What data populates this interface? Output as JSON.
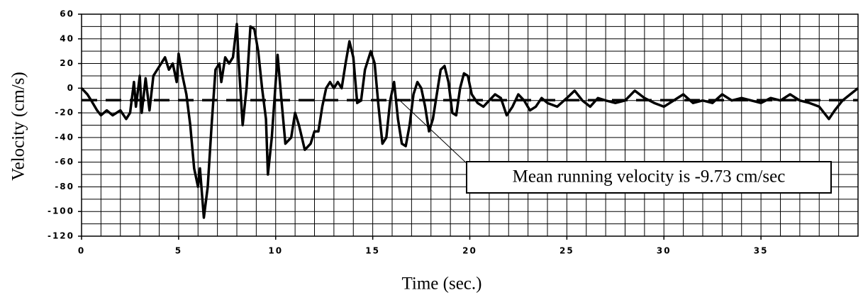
{
  "chart_data": {
    "type": "line",
    "x_label": "Time (sec.)",
    "y_label": "Velocity (cm/s)",
    "annotation": "Mean running velocity is -9.73 cm/sec",
    "mean": -9.73,
    "color": "#000000",
    "grid": true,
    "xlim": [
      0,
      40
    ],
    "xticks": [
      0,
      5,
      10,
      15,
      20,
      25,
      30,
      35
    ],
    "ylim": [
      -120,
      60
    ],
    "yticks": [
      60,
      40,
      20,
      0,
      -20,
      -40,
      -60,
      -80,
      -100,
      -120
    ],
    "x": [
      0,
      0.3,
      0.5,
      0.8,
      1.0,
      1.3,
      1.6,
      2.0,
      2.3,
      2.5,
      2.7,
      2.8,
      3.0,
      3.1,
      3.3,
      3.5,
      3.7,
      3.9,
      4.1,
      4.3,
      4.5,
      4.7,
      4.9,
      5.0,
      5.2,
      5.4,
      5.6,
      5.8,
      6.0,
      6.1,
      6.3,
      6.5,
      6.7,
      6.9,
      7.1,
      7.2,
      7.4,
      7.6,
      7.8,
      8.0,
      8.1,
      8.3,
      8.5,
      8.7,
      8.9,
      9.1,
      9.3,
      9.5,
      9.6,
      9.8,
      10.1,
      10.3,
      10.5,
      10.8,
      11.0,
      11.2,
      11.5,
      11.8,
      12.0,
      12.2,
      12.4,
      12.6,
      12.8,
      13.0,
      13.2,
      13.4,
      13.6,
      13.8,
      14.0,
      14.2,
      14.4,
      14.6,
      14.9,
      15.1,
      15.3,
      15.5,
      15.7,
      15.9,
      16.1,
      16.3,
      16.5,
      16.7,
      16.9,
      17.1,
      17.3,
      17.5,
      17.7,
      17.9,
      18.1,
      18.3,
      18.5,
      18.7,
      18.9,
      19.1,
      19.3,
      19.5,
      19.7,
      19.9,
      20.1,
      20.4,
      20.7,
      21.0,
      21.3,
      21.6,
      21.9,
      22.2,
      22.5,
      22.8,
      23.1,
      23.4,
      23.7,
      24.0,
      24.5,
      25.0,
      25.4,
      25.8,
      26.2,
      26.6,
      27.0,
      27.5,
      28.0,
      28.5,
      29.0,
      29.5,
      30.0,
      30.5,
      31.0,
      31.5,
      32.0,
      32.5,
      33.0,
      33.5,
      34.0,
      34.5,
      35.0,
      35.5,
      36.0,
      36.5,
      37.0,
      37.5,
      38.0,
      38.5,
      38.8,
      39.2,
      39.6,
      40
    ],
    "values": [
      0,
      -5,
      -10,
      -18,
      -22,
      -18,
      -22,
      -18,
      -25,
      -20,
      5,
      -15,
      10,
      -20,
      8,
      -18,
      10,
      15,
      20,
      25,
      15,
      20,
      5,
      28,
      10,
      -5,
      -30,
      -65,
      -80,
      -65,
      -105,
      -80,
      -30,
      15,
      20,
      5,
      25,
      20,
      25,
      52,
      20,
      -30,
      0,
      50,
      48,
      30,
      0,
      -25,
      -70,
      -40,
      27,
      -10,
      -45,
      -40,
      -20,
      -30,
      -50,
      -45,
      -35,
      -35,
      -15,
      0,
      5,
      0,
      5,
      0,
      20,
      38,
      25,
      -12,
      -10,
      15,
      30,
      20,
      -15,
      -45,
      -40,
      -10,
      5,
      -25,
      -45,
      -47,
      -30,
      -5,
      5,
      0,
      -15,
      -35,
      -25,
      -5,
      15,
      18,
      5,
      -20,
      -22,
      0,
      12,
      10,
      -5,
      -12,
      -15,
      -10,
      -5,
      -8,
      -22,
      -15,
      -5,
      -10,
      -18,
      -15,
      -8,
      -12,
      -15,
      -8,
      -2,
      -10,
      -15,
      -8,
      -10,
      -12,
      -10,
      -2,
      -8,
      -12,
      -15,
      -10,
      -5,
      -12,
      -10,
      -12,
      -5,
      -10,
      -8,
      -10,
      -12,
      -8,
      -10,
      -5,
      -10,
      -12,
      -15,
      -25,
      -18,
      -10,
      -5,
      0
    ]
  }
}
